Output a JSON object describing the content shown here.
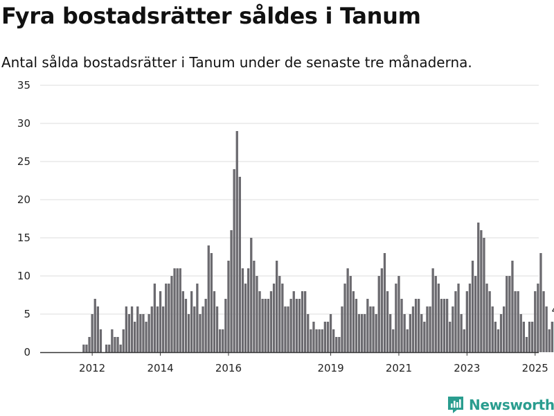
{
  "title": "Fyra bostadsrätter såldes i Tanum",
  "subtitle": "Antal sålda bostadsrätter i Tanum under de senaste tre månaderna.",
  "brand": "Newsworthy",
  "colors": {
    "bar": "#6b6a6f",
    "highlight": "#2a9d8f",
    "grid": "#dddddd",
    "axis": "#333333"
  },
  "chart_data": {
    "type": "bar",
    "title": "Fyra bostadsrätter såldes i Tanum",
    "subtitle": "Antal sålda bostadsrätter i Tanum under de senaste tre månaderna.",
    "xlabel": "",
    "ylabel": "",
    "ylim": [
      0,
      35
    ],
    "yticks": [
      0,
      5,
      10,
      15,
      20,
      25,
      30,
      35
    ],
    "grid": true,
    "start": "2011-03",
    "frequency": "monthly",
    "xticks": [
      {
        "label": "2012",
        "index": 10
      },
      {
        "label": "2014",
        "index": 34
      },
      {
        "label": "2016",
        "index": 58
      },
      {
        "label": "2019",
        "index": 94
      },
      {
        "label": "2021",
        "index": 118
      },
      {
        "label": "2023",
        "index": 142
      },
      {
        "label": "2025",
        "index": 166
      }
    ],
    "highlight_label": "4",
    "values": [
      0,
      0,
      0,
      0,
      0,
      0,
      0,
      1,
      1,
      2,
      5,
      7,
      6,
      3,
      0,
      1,
      1,
      3,
      2,
      2,
      1,
      3,
      6,
      5,
      6,
      4,
      6,
      5,
      5,
      4,
      5,
      6,
      9,
      6,
      8,
      6,
      9,
      9,
      10,
      11,
      11,
      11,
      8,
      7,
      5,
      8,
      6,
      9,
      5,
      6,
      7,
      14,
      13,
      8,
      6,
      3,
      3,
      7,
      12,
      16,
      24,
      29,
      23,
      11,
      9,
      11,
      15,
      12,
      10,
      8,
      7,
      7,
      7,
      8,
      9,
      12,
      10,
      9,
      6,
      6,
      7,
      8,
      7,
      7,
      8,
      8,
      5,
      3,
      4,
      3,
      3,
      3,
      4,
      4,
      5,
      3,
      2,
      2,
      6,
      9,
      11,
      10,
      8,
      7,
      5,
      5,
      5,
      7,
      6,
      6,
      5,
      10,
      11,
      13,
      8,
      5,
      3,
      9,
      10,
      7,
      5,
      3,
      5,
      6,
      7,
      7,
      5,
      4,
      6,
      6,
      11,
      10,
      9,
      7,
      7,
      7,
      4,
      6,
      8,
      9,
      5,
      3,
      8,
      9,
      12,
      10,
      17,
      16,
      15,
      9,
      8,
      6,
      4,
      3,
      5,
      6,
      10,
      10,
      12,
      8,
      8,
      5,
      4,
      2,
      4,
      4,
      8,
      9,
      13,
      8,
      6,
      3,
      4,
      4
    ]
  }
}
